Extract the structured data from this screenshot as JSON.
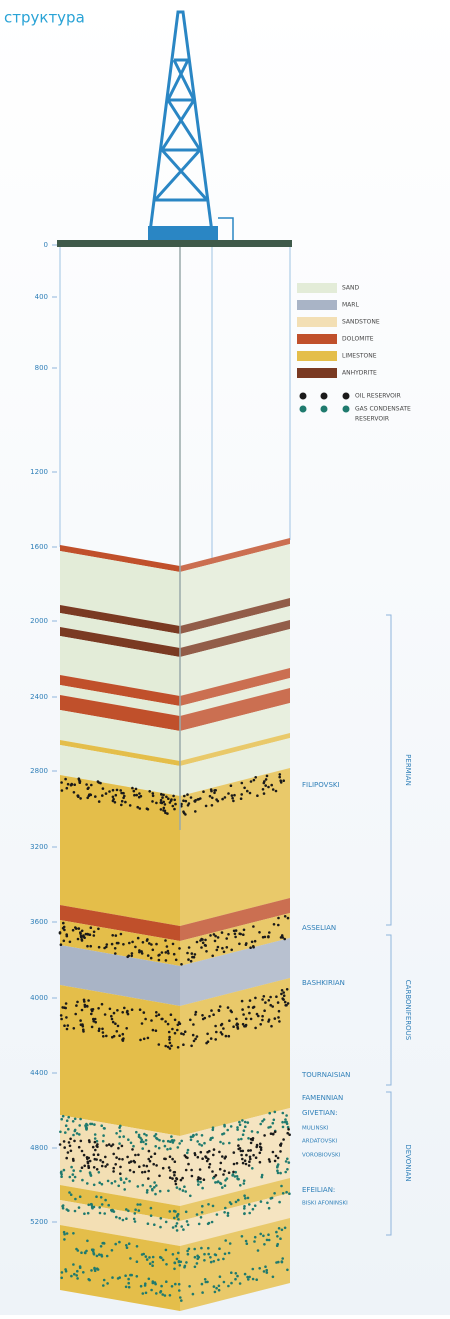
{
  "header": {
    "title": "структура"
  },
  "depth_ticks": [
    0,
    400,
    800,
    1200,
    1600,
    2000,
    2400,
    2800,
    3200,
    3600,
    4000,
    4400,
    4800,
    5200
  ],
  "legend": [
    {
      "label": "SAND",
      "color": "#e3ecd8"
    },
    {
      "label": "MARL",
      "color": "#a9b4c6"
    },
    {
      "label": "SANDSTONE",
      "color": "#f3dfb4"
    },
    {
      "label": "DOLOMITE",
      "color": "#c0502b"
    },
    {
      "label": "LIMESTONE",
      "color": "#e4be4a"
    },
    {
      "label": "ANHYDRITE",
      "color": "#7a3a22"
    }
  ],
  "reservoirs": [
    {
      "lines": [
        "OIL RESERVOIR"
      ],
      "color": "#1a1a1a"
    },
    {
      "lines": [
        "GAS CONDENSATE",
        "RESERVOIR"
      ],
      "color": "#1f7a6e"
    }
  ],
  "horizons": [
    "FILIPOVSKI",
    "ASSELIAN",
    "BASHKIRIAN",
    "TOURNAISIAN",
    "FAMENNIAN",
    "GIVETIAN:",
    "MULINSKI",
    "ARDATOVSKI",
    "VOROBIOVSKI",
    "EFEILIAN:",
    "BISKI AFONINSKI"
  ],
  "periods": [
    "PERMIAN",
    "CARBONIFEROUS",
    "DEVONIAN"
  ]
}
